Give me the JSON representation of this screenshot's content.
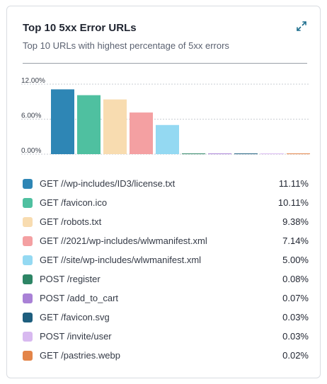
{
  "card": {
    "title": "Top 10 5xx Error URLs",
    "subtitle": "Top 10 URLs with highest percentage of 5xx errors",
    "expand_icon": "expand-arrows-icon"
  },
  "chart_data": {
    "type": "bar",
    "yticks": [
      "12.00%",
      "6.00%",
      "0.00%"
    ],
    "ylim": [
      0,
      12
    ],
    "grid": true,
    "categories": [
      "GET //wp-includes/ID3/license.txt",
      "GET /favicon.ico",
      "GET /robots.txt",
      "GET //2021/wp-includes/wlwmanifest.xml",
      "GET //site/wp-includes/wlwmanifest.xml",
      "POST /register",
      "POST /add_to_cart",
      "GET /favicon.svg",
      "POST /invite/user",
      "GET /pastries.webp"
    ],
    "values": [
      11.11,
      10.11,
      9.38,
      7.14,
      5.0,
      0.08,
      0.07,
      0.03,
      0.03,
      0.02
    ],
    "display_values": [
      "11.11%",
      "10.11%",
      "9.38%",
      "7.14%",
      "5.00%",
      "0.08%",
      "0.07%",
      "0.03%",
      "0.03%",
      "0.02%"
    ],
    "colors": [
      "#2e86b5",
      "#4fc0a0",
      "#f8dcb0",
      "#f4a0a2",
      "#94d9f2",
      "#2d8565",
      "#a981d6",
      "#1e5e7e",
      "#d8b9f0",
      "#e38448"
    ],
    "legend_placement": "bottom"
  }
}
